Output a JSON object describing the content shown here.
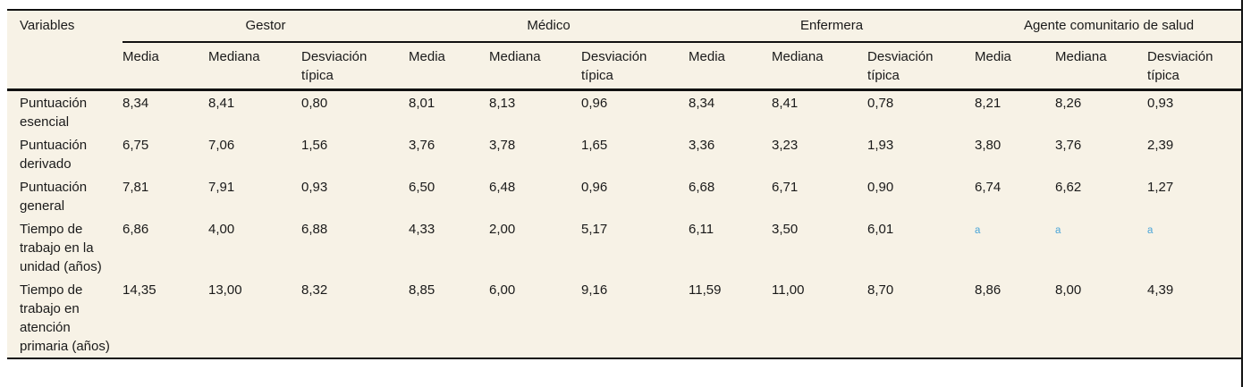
{
  "table": {
    "variables_header": "Variables",
    "groups": [
      {
        "label": "Gestor"
      },
      {
        "label": "Médico"
      },
      {
        "label": "Enfermera"
      },
      {
        "label": "Agente comunitario de salud"
      }
    ],
    "stat_headers": [
      "Media",
      "Mediana",
      "Desviación típica"
    ],
    "rows": [
      {
        "label": "Puntuación esencial",
        "values": [
          "8,34",
          "8,41",
          "0,80",
          "8,01",
          "8,13",
          "0,96",
          "8,34",
          "8,41",
          "0,78",
          "8,21",
          "8,26",
          "0,93"
        ]
      },
      {
        "label": "Puntuación derivado",
        "values": [
          "6,75",
          "7,06",
          "1,56",
          "3,76",
          "3,78",
          "1,65",
          "3,36",
          "3,23",
          "1,93",
          "3,80",
          "3,76",
          "2,39"
        ]
      },
      {
        "label": "Puntuación general",
        "values": [
          "7,81",
          "7,91",
          "0,93",
          "6,50",
          "6,48",
          "0,96",
          "6,68",
          "6,71",
          "0,90",
          "6,74",
          "6,62",
          "1,27"
        ]
      },
      {
        "label": "Tiempo de trabajo en la unidad (años)",
        "values": [
          "6,86",
          "4,00",
          "6,88",
          "4,33",
          "2,00",
          "5,17",
          "6,11",
          "3,50",
          "6,01",
          "a",
          "a",
          "a"
        ]
      },
      {
        "label": "Tiempo de trabajo en atención primaria (años)",
        "values": [
          "14,35",
          "13,00",
          "8,32",
          "8,85",
          "6,00",
          "9,16",
          "11,59",
          "11,00",
          "8,70",
          "8,86",
          "8,00",
          "4,39"
        ]
      }
    ],
    "footnote_marker": "a",
    "colors": {
      "table_background": "#f7f2e6",
      "rule": "#111111",
      "text": "#1a1a1a",
      "footnote_marker": "#4ba5d8"
    }
  }
}
